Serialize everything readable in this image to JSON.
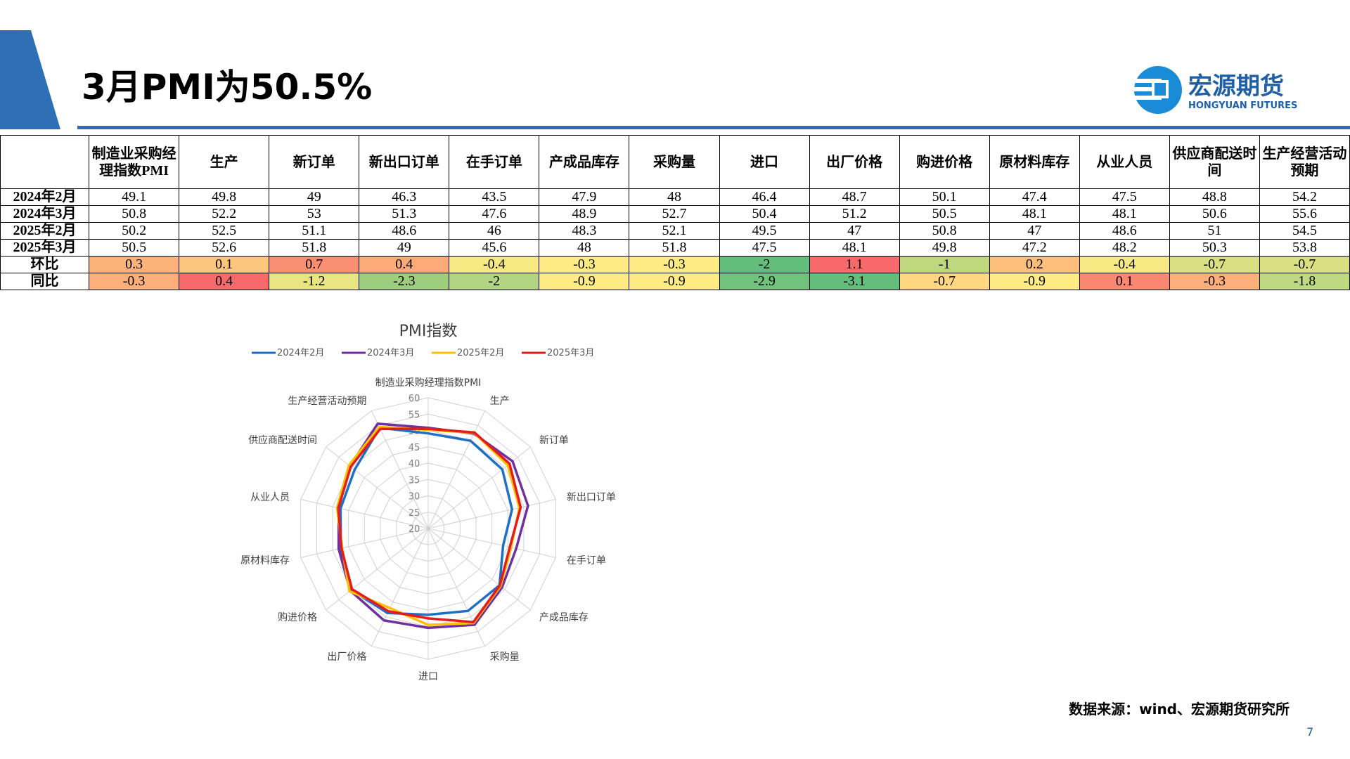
{
  "header": {
    "title": "3月PMI为50.5%",
    "logo_name": "宏源期货",
    "logo_sub": "HONGYUAN FUTURES"
  },
  "table": {
    "header": [
      "制造业采购经理指数PMI",
      "生产",
      "新订单",
      "新出口订单",
      "在手订单",
      "产成品库存",
      "采购量",
      "进口",
      "出厂价格",
      "购进价格",
      "原材料库存",
      "从业人员",
      "供应商配送时间",
      "生产经营活动预期"
    ],
    "rows": [
      {
        "label": "2024年2月",
        "cells": [
          49.1,
          49.8,
          49,
          46.3,
          43.5,
          47.9,
          48,
          46.4,
          48.7,
          50.1,
          47.4,
          47.5,
          48.8,
          54.2
        ]
      },
      {
        "label": "2024年3月",
        "cells": [
          50.8,
          52.2,
          53,
          51.3,
          47.6,
          48.9,
          52.7,
          50.4,
          51.2,
          50.5,
          48.1,
          48.1,
          50.6,
          55.6
        ]
      },
      {
        "label": "2025年2月",
        "cells": [
          50.2,
          52.5,
          51.1,
          48.6,
          46,
          48.3,
          52.1,
          49.5,
          47,
          50.8,
          47,
          48.6,
          51,
          54.5
        ]
      },
      {
        "label": "2025年3月",
        "cells": [
          50.5,
          52.6,
          51.8,
          49,
          45.6,
          48,
          51.8,
          47.5,
          48.1,
          49.8,
          47.2,
          48.2,
          50.3,
          53.8
        ]
      }
    ],
    "change_rows": [
      {
        "label": "环比",
        "cells": [
          0.3,
          0.1,
          0.7,
          0.4,
          -0.4,
          -0.3,
          -0.3,
          -2,
          1.1,
          -1,
          0.2,
          -0.4,
          -0.7,
          -0.7
        ]
      },
      {
        "label": "同比",
        "cells": [
          -0.3,
          0.4,
          -1.2,
          -2.3,
          -2,
          -0.9,
          -0.9,
          -2.9,
          -3.1,
          -0.7,
          -0.9,
          0.1,
          -0.3,
          -1.8
        ]
      }
    ],
    "change_colors": {
      "low": "#63be7b",
      "mid": "#ffeb84",
      "high": "#f8696b"
    }
  },
  "chart_data": {
    "type": "radar",
    "title": "PMI指数",
    "categories": [
      "制造业采购经理指数PMI",
      "生产",
      "新订单",
      "新出口订单",
      "在手订单",
      "产成品库存",
      "采购量",
      "进口",
      "出厂价格",
      "购进价格",
      "原材料库存",
      "从业人员",
      "供应商配送时间",
      "生产经营活动预期"
    ],
    "series": [
      {
        "name": "2024年2月",
        "color": "#1f6fc5",
        "values": [
          49.1,
          49.8,
          49,
          46.3,
          43.5,
          47.9,
          48,
          46.4,
          48.7,
          50.1,
          47.4,
          47.5,
          48.8,
          54.2
        ]
      },
      {
        "name": "2024年3月",
        "color": "#7030a0",
        "values": [
          50.8,
          52.2,
          53,
          51.3,
          47.6,
          48.9,
          52.7,
          50.4,
          51.2,
          50.5,
          48.1,
          48.1,
          50.6,
          55.6
        ]
      },
      {
        "name": "2025年2月",
        "color": "#ffc000",
        "values": [
          50.2,
          52.5,
          51.1,
          48.6,
          46,
          48.3,
          52.1,
          49.5,
          47,
          50.8,
          47,
          48.6,
          51,
          54.5
        ]
      },
      {
        "name": "2025年3月",
        "color": "#e51c1c",
        "values": [
          50.5,
          52.6,
          51.8,
          49,
          45.6,
          48,
          51.8,
          47.5,
          48.1,
          49.8,
          47.2,
          48.2,
          50.3,
          53.8
        ]
      }
    ],
    "rlim": [
      20,
      60
    ],
    "rticks": [
      20,
      25,
      30,
      35,
      40,
      45,
      50,
      55,
      60
    ],
    "grid": true,
    "legend": "top"
  },
  "footer": {
    "source": "数据来源：wind、宏源期货研究所",
    "page_number": 7
  }
}
